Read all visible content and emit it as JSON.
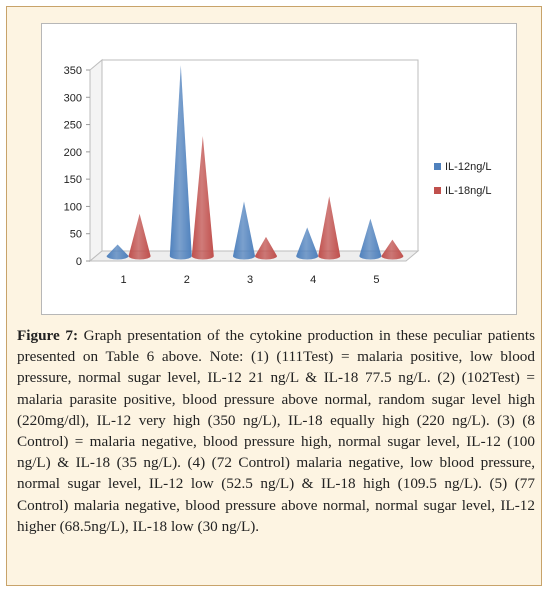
{
  "chart_data": {
    "type": "bar",
    "style": "3d-cone",
    "categories": [
      "1",
      "2",
      "3",
      "4",
      "5"
    ],
    "series": [
      {
        "name": "IL-12ng/L",
        "color": "#4f81bd",
        "values": [
          21,
          350,
          100,
          52.5,
          68.5
        ]
      },
      {
        "name": "IL-18ng/L",
        "color": "#c0504d",
        "values": [
          77.5,
          220,
          35,
          109.5,
          30
        ]
      }
    ],
    "yticks": [
      0,
      50,
      100,
      150,
      200,
      250,
      300,
      350
    ],
    "ylim": [
      0,
      350
    ],
    "grid": false,
    "legend": "right",
    "title": "",
    "xlabel": "",
    "ylabel": ""
  },
  "caption": {
    "label": "Figure 7:",
    "text": " Graph presentation of the cytokine production in these peculiar patients presented on Table 6 above. Note: (1) (111Test) = malaria positive, low blood pressure, normal sugar level, IL-12 21 ng/L & IL-18 77.5 ng/L. (2) (102Test) = malaria parasite positive, blood pressure above normal, random sugar level high (220mg/dl), IL-12 very high (350 ng/L), IL-18 equally high (220 ng/L). (3) (8 Control) = malaria negative, blood pressure high, normal sugar level, IL-12 (100 ng/L) & IL-18 (35 ng/L). (4) (72 Control) malaria negative, low blood pressure, normal sugar level, IL-12 low (52.5 ng/L) & IL-18 high (109.5 ng/L). (5) (77 Control) malaria negative, blood pressure above normal, normal sugar level, IL-12 higher (68.5ng/L), IL-18 low (30 ng/L)."
  }
}
